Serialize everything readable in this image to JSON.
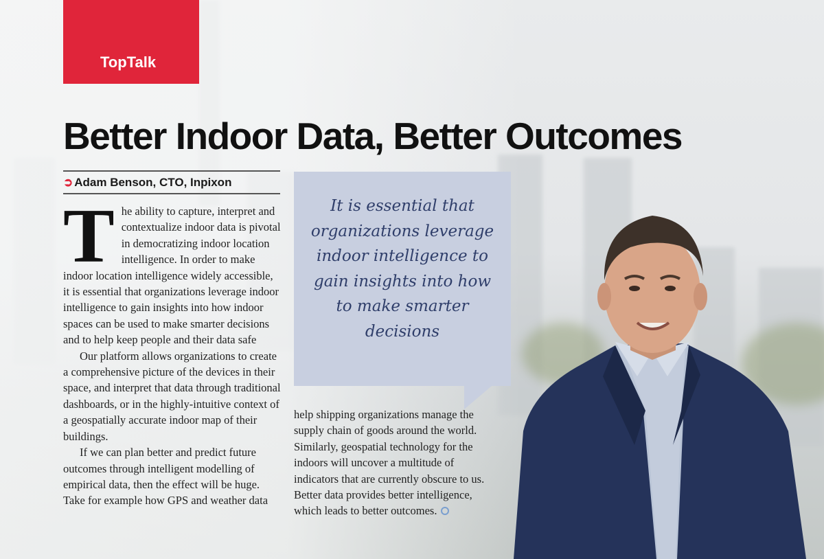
{
  "section": {
    "tag": "TopTalk"
  },
  "article": {
    "title": "Better Indoor Data, Better Outcomes",
    "byline": "Adam Benson, CTO, Inpixon",
    "dropcap": "T",
    "p1_rest": "he ability to capture, interpret and contextualize indoor data is pivotal in democratizing indoor location intelligence.  In order to make indoor location intelligence widely accessible, it is essential that organizations leverage indoor intelligence to gain insights into how indoor spaces can be used to make smarter decisions and to help keep people and their data safe",
    "p2": "Our platform allows organizations to create a comprehensive picture of the devices in their space, and interpret that data through traditional dashboards, or in the highly-intuitive context of a geospatially accurate indoor map of their buildings.",
    "p3": "If we can plan better and predict future outcomes through intelligent modelling of empirical data, then the effect will be huge. Take for example how GPS and weather data",
    "p4": "help shipping organizations manage the supply chain of goods around the world. Similarly, geospatial technology for the indoors will uncover a multitude of indicators that are currently obscure to us. Better data provides better intelligence, which leads to better outcomes."
  },
  "pullquote": {
    "text": "It is essential that organizations leverage indoor intelligence to gain insights into how to make smarter decisions"
  },
  "colors": {
    "accent": "#e0253a",
    "quote_bg": "#c8cfe0",
    "quote_text": "#2f3e6a"
  },
  "icons": {
    "byline_marker": "arrow-icon",
    "end_mark": "end-of-article-icon"
  }
}
